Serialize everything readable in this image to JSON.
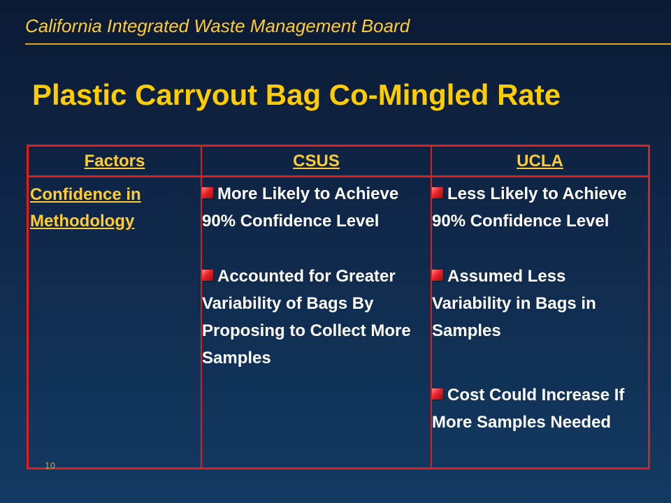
{
  "header": {
    "org_title": "California Integrated Waste Management Board"
  },
  "slide": {
    "title": "Plastic Carryout Bag Co-Mingled Rate",
    "page_number": "10"
  },
  "table": {
    "headers": [
      "Factors",
      "CSUS",
      "UCLA"
    ],
    "factor": "Confidence in Methodology",
    "csus_bullets": [
      "More Likely to Achieve 90% Confidence Level",
      "Accounted for Greater Variability of Bags By Proposing to Collect More Samples"
    ],
    "ucla_bullets": [
      "Less Likely to Achieve 90% Confidence Level",
      "Assumed Less Variability in Bags in Samples",
      "Cost Could Increase If More Samples Needed"
    ]
  },
  "colors": {
    "background": "#0f2647",
    "accent_gold": "#ffcc33",
    "table_border_red": "#e31c1c",
    "bullet_red": "#e8232a"
  },
  "icons": {
    "bullet": "red-square-bullet-icon"
  }
}
